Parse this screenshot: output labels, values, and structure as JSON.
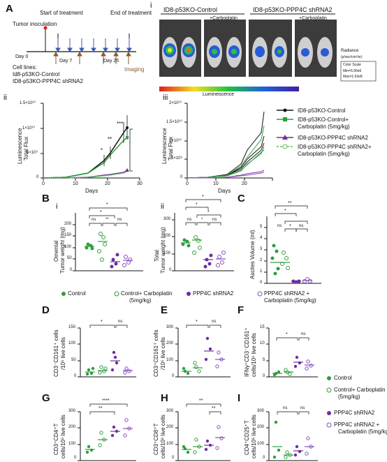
{
  "panels": {
    "A": "A",
    "B": "B",
    "C": "C",
    "D": "D",
    "E": "E",
    "F": "F",
    "G": "G",
    "H": "H",
    "I": "I",
    "A_i": "i",
    "A_ii": "ii",
    "A_iii": "iii",
    "B_i": "i",
    "B_ii": "ii"
  },
  "timeline": {
    "start_treatment": "Start of treatment",
    "end_treatment": "End of treatment",
    "tumor_inoculation": "Tumor inoculation",
    "day0": "Day 0",
    "day7": "Day 7",
    "day25": "Day 25",
    "imaging": "Imaging",
    "cell_lines_title": "Cell lines:",
    "cell_line_1": "Id8-p53KO-Control",
    "cell_line_2": "ID8-p53KO-PPP4C shRNA2"
  },
  "imaging": {
    "group1": "ID8-p53KO-Control",
    "group2": "ID8-p53KO-PPP4C shRNA2",
    "carbo1": "+Carboplatin",
    "carbo2": "+Carboplatin",
    "radiance": "Radiance",
    "radiance_units": "(p/sec/cm²/sr)",
    "color_scale": "Color Scale",
    "color_min": "Min=5.00e6",
    "color_max": "Max=1.63e8",
    "luminescence": "Luminescence"
  },
  "growth": {
    "ylabel1": "Luminescence",
    "ylabel2": "Total Flux",
    "xlabel": "Days",
    "yticks_ii": [
      "1.5×10¹⁰",
      "1×10¹⁰",
      "5×10⁹",
      "0"
    ],
    "yticks_iii": [
      "2×10¹⁰",
      "1.5×10¹⁰",
      "1×10¹⁰",
      "5×10⁹",
      "0"
    ],
    "xticks": [
      "0",
      "10",
      "20",
      "30"
    ],
    "sig_top": "***",
    "sig_mid": "**",
    "sig_low": "*"
  },
  "legend_A": {
    "control": "ID8-p53KO-Control",
    "control_carbo": "ID8-p53KO-Control+",
    "carbo_dose1": "Carboplatin (5mg/kg)",
    "shrna": "ID8-p53KO-PPP4C shRNA2",
    "shrna_carbo": "ID8-p53KO-PPP4C shRNA2+",
    "carbo_dose2": "Carboplatin (5mg/kg)"
  },
  "panelB": {
    "ylabel_i_1": "Omental",
    "ylabel_i_2": "Tumor weight (mg)",
    "ylabel_ii_1": "Total",
    "ylabel_ii_2": "Tumor weight (mg)",
    "yticks_i": [
      "200",
      "150",
      "100",
      "50",
      "0"
    ],
    "yticks_ii": [
      "300",
      "200",
      "100",
      "0"
    ],
    "sig": [
      "*",
      "*",
      "ns",
      "**",
      "ns",
      "*",
      "*",
      "*",
      "ns",
      "*",
      "ns"
    ]
  },
  "panelC": {
    "ylabel": "Ascites Volume (ml)",
    "yticks": [
      "5",
      "4",
      "3",
      "2",
      "1",
      "0"
    ],
    "sig": [
      "**",
      "*",
      "ns",
      "*",
      "ns"
    ]
  },
  "legend_B": {
    "control": "Control",
    "control_carbo": "Control+ Carboplatin",
    "control_carbo_dose": "(5mg/kg)",
    "shrna": "PPP4C shRNA2",
    "shrna_carbo": "PPP4C shRNA2 +",
    "shrna_carbo_dose": "Carboplatin (5mg/kg)"
  },
  "panelD": {
    "ylabel1": "CD3⁻CD161⁺ cells",
    "ylabel2": "/10⁵ live cells",
    "yticks": [
      "150",
      "100",
      "50",
      "0"
    ],
    "sig": [
      "*",
      "ns"
    ]
  },
  "panelE": {
    "ylabel1": "CD3⁺CD161⁺ cells",
    "ylabel2": "/10⁵ live cells",
    "yticks": [
      "300",
      "200",
      "100",
      "0"
    ],
    "sig": [
      "*",
      "ns"
    ]
  },
  "panelF": {
    "ylabel1": "IFNγ⁺CD3⁻CD161⁺",
    "ylabel2": "cells/10⁵ live cells",
    "yticks": [
      "15",
      "10",
      "5",
      "0"
    ],
    "sig": [
      "*",
      "ns"
    ]
  },
  "panelG": {
    "ylabel1": "CD3⁺CD4⁺T",
    "ylabel2": "cells/10⁵ live cells",
    "yticks": [
      "300",
      "200",
      "100",
      "0"
    ],
    "sig": [
      "****",
      "**"
    ]
  },
  "panelH": {
    "ylabel1": "CD3⁺CD8⁺T",
    "ylabel2": "cells/10⁵ live cells",
    "yticks": [
      "300",
      "200",
      "100",
      "0"
    ],
    "sig": [
      "**",
      "**"
    ]
  },
  "panelI": {
    "ylabel1": "CD4⁺CD25⁺T",
    "ylabel2": "cells/10⁵ live cells",
    "yticks": [
      "300",
      "200",
      "100",
      "0"
    ],
    "sig": [
      "ns",
      "ns"
    ]
  },
  "legend_D": {
    "control": "Control",
    "control_carbo": "Control+ Carboplatin",
    "control_carbo_dose": "(5mg/kg)",
    "shrna": "PPP4C shRNA2",
    "shrna_carbo": "PPP4C shRNA2 +",
    "shrna_carbo_dose": "Carboplatin (5mg/kg)"
  },
  "colors": {
    "black": "#111111",
    "green": "#2e9e3e",
    "purple": "#6b2fa0",
    "light_green": "#5cbf60",
    "light_purple": "#8a4dc0"
  },
  "chart_data": [
    {
      "type": "line",
      "panel": "A-ii",
      "xlabel": "Days",
      "ylabel": "Luminescence Total Flux",
      "ylim": [
        0,
        15000000000
      ],
      "xlim": [
        0,
        30
      ],
      "x": [
        0,
        7,
        14,
        19,
        21,
        25,
        26
      ],
      "series": [
        {
          "name": "ID8-p53KO-Control",
          "values": [
            0,
            100000000,
            1000000000,
            3500000000,
            5000000000,
            9000000000,
            10000000000
          ]
        },
        {
          "name": "ID8-p53KO-Control+ Carboplatin (5mg/kg)",
          "values": [
            0,
            100000000,
            900000000,
            3000000000,
            4500000000,
            7500000000,
            8000000000
          ]
        },
        {
          "name": "ID8-p53KO-PPP4C shRNA2",
          "values": [
            0,
            50000000,
            200000000,
            500000000,
            700000000,
            1200000000,
            1500000000
          ]
        },
        {
          "name": "ID8-p53KO-PPP4C shRNA2+ Carboplatin (5mg/kg)",
          "values": [
            0,
            50000000,
            200000000,
            450000000,
            600000000,
            1000000000,
            1200000000
          ]
        }
      ]
    },
    {
      "type": "scatter",
      "panel": "B-i",
      "ylabel": "Omental Tumor weight (mg)",
      "ylim": [
        0,
        200
      ],
      "categories": [
        "Control",
        "Control+ Carboplatin",
        "PPP4C shRNA2",
        "PPP4C shRNA2 + Carboplatin"
      ],
      "means": [
        112,
        132,
        40,
        45
      ]
    },
    {
      "type": "scatter",
      "panel": "B-ii",
      "ylabel": "Total Tumor weight (mg)",
      "ylim": [
        0,
        300
      ],
      "categories": [
        "Control",
        "Control+ Carboplatin",
        "PPP4C shRNA2",
        "PPP4C shRNA2 + Carboplatin"
      ],
      "means": [
        165,
        185,
        65,
        68
      ]
    },
    {
      "type": "scatter",
      "panel": "C",
      "ylabel": "Ascites Volume (ml)",
      "ylim": [
        0,
        5
      ],
      "categories": [
        "Control",
        "Control+ Carboplatin",
        "PPP4C shRNA2",
        "PPP4C shRNA2 + Carboplatin"
      ],
      "means": [
        2.2,
        1.8,
        0.1,
        0.15
      ]
    },
    {
      "type": "scatter",
      "panel": "D",
      "ylim": [
        0,
        150
      ],
      "means": [
        20,
        28,
        55,
        28
      ]
    },
    {
      "type": "scatter",
      "panel": "E",
      "ylim": [
        0,
        300
      ],
      "means": [
        38,
        55,
        160,
        100
      ]
    },
    {
      "type": "scatter",
      "panel": "F",
      "ylim": [
        0,
        15
      ],
      "means": [
        1.5,
        1.6,
        4.8,
        3.5
      ]
    },
    {
      "type": "scatter",
      "panel": "G",
      "ylim": [
        0,
        300
      ],
      "means": [
        80,
        130,
        180,
        190
      ]
    },
    {
      "type": "scatter",
      "panel": "H",
      "ylim": [
        0,
        300
      ],
      "means": [
        60,
        85,
        90,
        145
      ]
    },
    {
      "type": "scatter",
      "panel": "I",
      "ylim": [
        0,
        300
      ],
      "means": [
        55,
        25,
        55,
        85
      ]
    }
  ]
}
